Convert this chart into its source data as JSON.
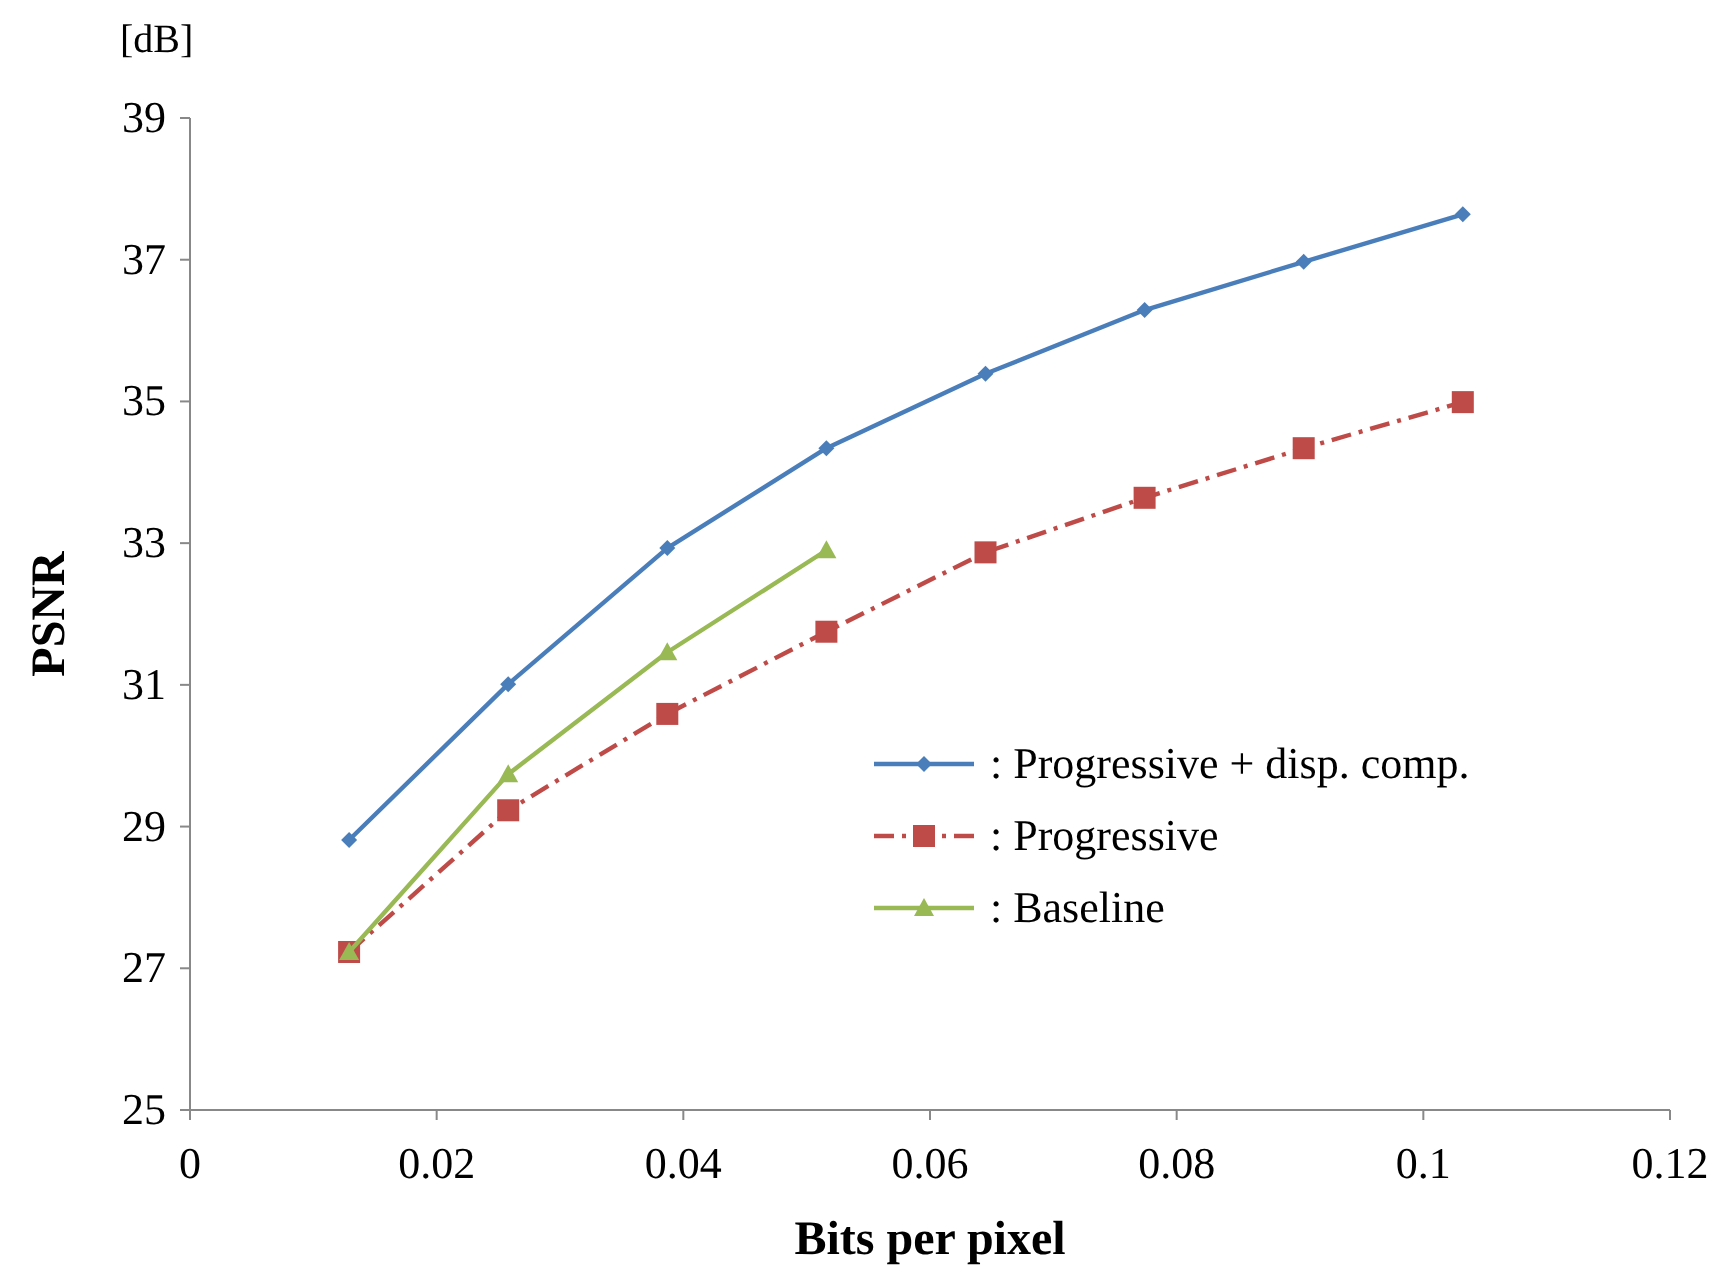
{
  "chart_data": {
    "type": "line",
    "xlabel": "Bits per pixel",
    "ylabel": "PSNR",
    "annotations": [
      "[dB]"
    ],
    "xlim": [
      0,
      0.12
    ],
    "xticks": [
      0,
      0.02,
      0.04,
      0.06,
      0.08,
      0.1,
      0.12
    ],
    "ylim": [
      25,
      39
    ],
    "yticks": [
      25,
      27,
      29,
      31,
      33,
      35,
      37,
      39
    ],
    "grid": false,
    "legend": "right",
    "series": [
      {
        "name": ": Progressive + disp. comp.",
        "color": "#4a7ebb",
        "marker": "diamond",
        "line_style": "solid",
        "x": [
          0.0129,
          0.0258,
          0.0387,
          0.0516,
          0.0645,
          0.0774,
          0.0903,
          0.1032
        ],
        "values": [
          28.81,
          31.01,
          32.93,
          34.34,
          35.39,
          36.29,
          36.97,
          37.64
        ]
      },
      {
        "name": ": Progressive",
        "color": "#be4b48",
        "marker": "square",
        "line_style": "dashed",
        "x": [
          0.0129,
          0.0258,
          0.0387,
          0.0516,
          0.0645,
          0.0774,
          0.0903,
          0.1032
        ],
        "values": [
          27.23,
          29.23,
          30.59,
          31.75,
          32.87,
          33.64,
          34.34,
          34.99
        ]
      },
      {
        "name": ": Baseline",
        "color": "#98b954",
        "marker": "triangle",
        "line_style": "solid",
        "x": [
          0.0129,
          0.0258,
          0.0387,
          0.0516
        ],
        "values": [
          27.23,
          29.74,
          31.46,
          32.9
        ]
      }
    ]
  }
}
